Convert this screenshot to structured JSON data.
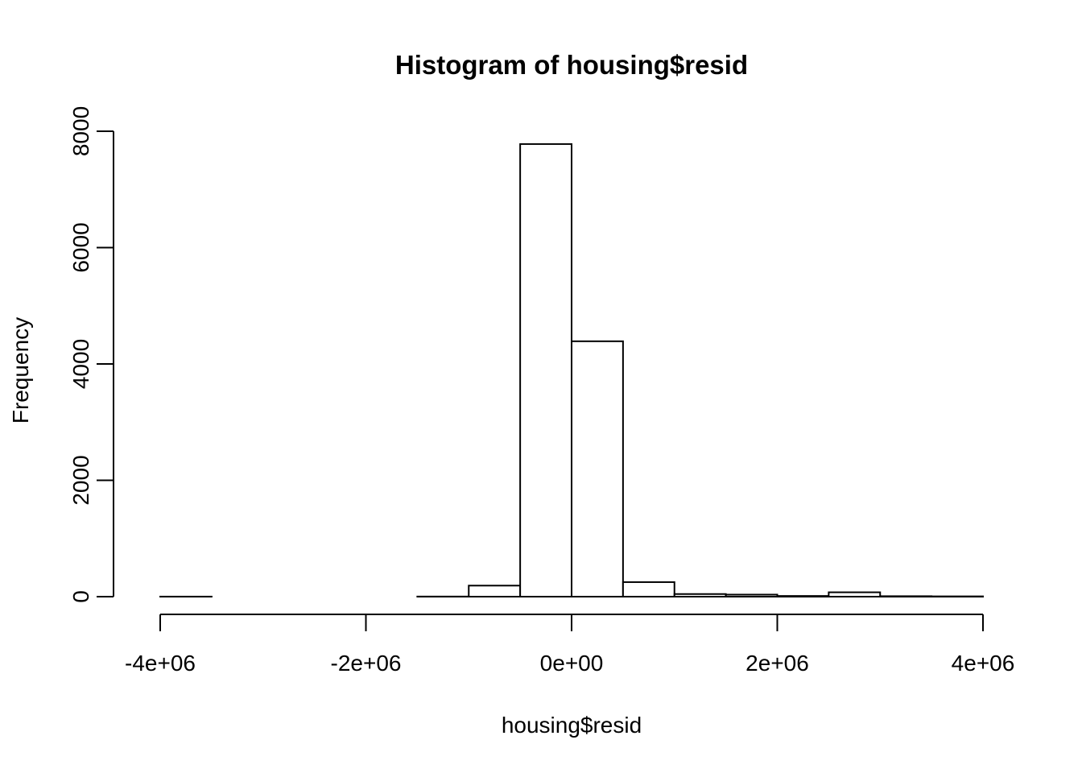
{
  "chart_data": {
    "type": "histogram",
    "title": "Histogram of housing$resid",
    "xlabel": "housing$resid",
    "ylabel": "Frequency",
    "xlim": [
      -4000000,
      4000000
    ],
    "ylim": [
      0,
      8000
    ],
    "x_ticks": [
      -4000000,
      -2000000,
      0,
      2000000,
      4000000
    ],
    "x_tick_labels": [
      "-4e+06",
      "-2e+06",
      "0e+00",
      "2e+06",
      "4e+06"
    ],
    "y_ticks": [
      0,
      2000,
      4000,
      6000,
      8000
    ],
    "y_tick_labels": [
      "0",
      "2000",
      "4000",
      "6000",
      "8000"
    ],
    "bins": [
      {
        "x0": -4000000,
        "x1": -3500000,
        "count": 1
      },
      {
        "x0": -3500000,
        "x1": -3000000,
        "count": 0
      },
      {
        "x0": -3000000,
        "x1": -2500000,
        "count": 0
      },
      {
        "x0": -2500000,
        "x1": -2000000,
        "count": 0
      },
      {
        "x0": -2000000,
        "x1": -1500000,
        "count": 0
      },
      {
        "x0": -1500000,
        "x1": -1000000,
        "count": 2
      },
      {
        "x0": -1000000,
        "x1": -500000,
        "count": 190
      },
      {
        "x0": -500000,
        "x1": 0,
        "count": 7780
      },
      {
        "x0": 0,
        "x1": 500000,
        "count": 4390
      },
      {
        "x0": 500000,
        "x1": 1000000,
        "count": 250
      },
      {
        "x0": 1000000,
        "x1": 1500000,
        "count": 45
      },
      {
        "x0": 1500000,
        "x1": 2000000,
        "count": 35
      },
      {
        "x0": 2000000,
        "x1": 2500000,
        "count": 12
      },
      {
        "x0": 2500000,
        "x1": 3000000,
        "count": 75
      },
      {
        "x0": 3000000,
        "x1": 3500000,
        "count": 8
      },
      {
        "x0": 3500000,
        "x1": 4000000,
        "count": 5
      }
    ]
  }
}
